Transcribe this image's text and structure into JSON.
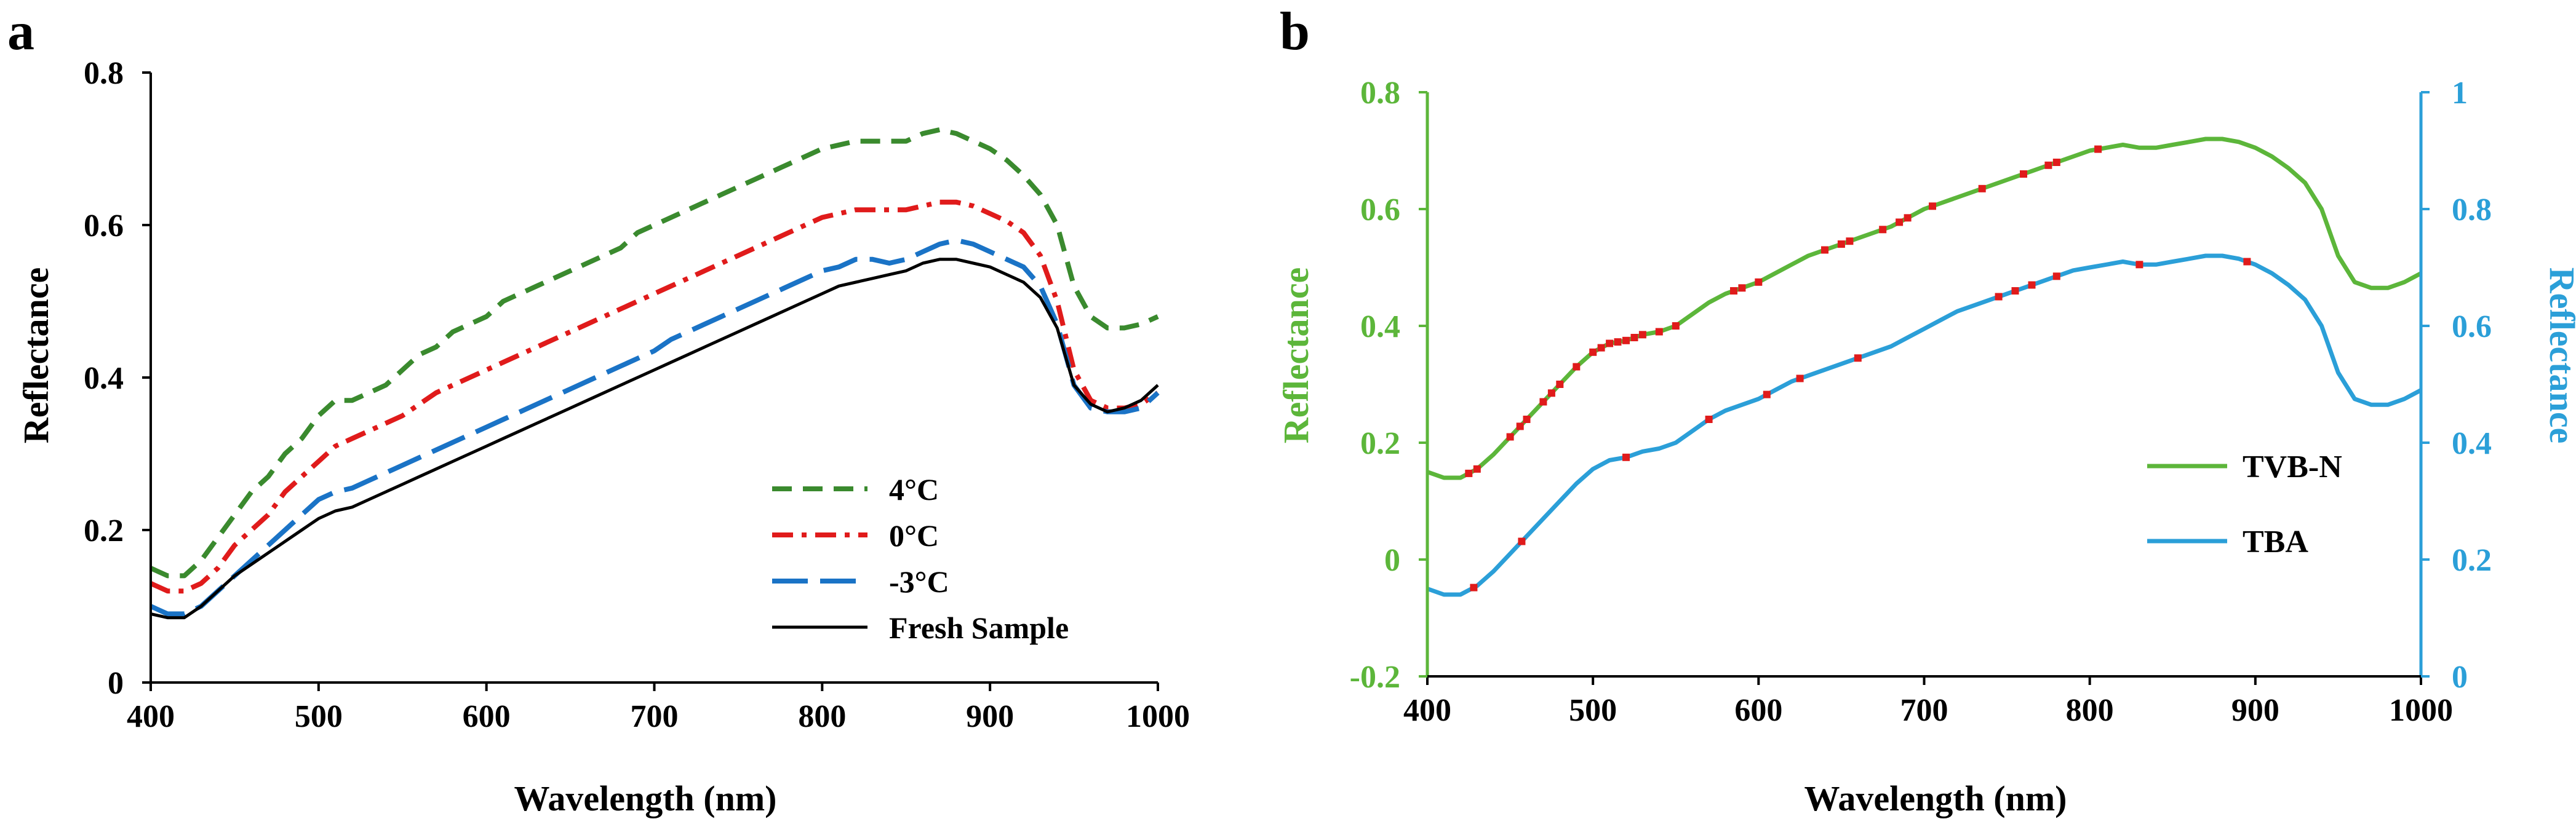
{
  "chart_data": [
    {
      "type": "line",
      "panel_label": "a",
      "xlabel": "Wavelength (nm)",
      "ylabel": "Reflectance",
      "xlim": [
        400,
        1000
      ],
      "ylim": [
        0,
        0.8
      ],
      "xticks": [
        400,
        500,
        600,
        700,
        800,
        900,
        1000
      ],
      "yticks": [
        0,
        0.2,
        0.4,
        0.6,
        0.8
      ],
      "ytick_labels": [
        "0",
        "0.2",
        "0.4",
        "0.6",
        "0.8"
      ],
      "legend_position": "bottom-right",
      "series": [
        {
          "name": "4°C",
          "color": "#3a8a2e",
          "style": "short-dash",
          "x": [
            400,
            410,
            420,
            430,
            440,
            450,
            460,
            470,
            480,
            490,
            500,
            510,
            520,
            530,
            540,
            550,
            560,
            570,
            580,
            590,
            600,
            610,
            620,
            630,
            640,
            650,
            660,
            670,
            680,
            690,
            700,
            710,
            720,
            730,
            740,
            750,
            760,
            770,
            780,
            790,
            800,
            810,
            820,
            830,
            840,
            850,
            860,
            870,
            880,
            890,
            900,
            910,
            920,
            930,
            940,
            950,
            960,
            970,
            980,
            990,
            1000
          ],
          "values": [
            0.15,
            0.14,
            0.14,
            0.16,
            0.19,
            0.22,
            0.25,
            0.27,
            0.3,
            0.32,
            0.35,
            0.37,
            0.37,
            0.38,
            0.39,
            0.41,
            0.43,
            0.44,
            0.46,
            0.47,
            0.48,
            0.5,
            0.51,
            0.52,
            0.53,
            0.54,
            0.55,
            0.56,
            0.57,
            0.59,
            0.6,
            0.61,
            0.62,
            0.63,
            0.64,
            0.65,
            0.66,
            0.67,
            0.68,
            0.69,
            0.7,
            0.705,
            0.71,
            0.71,
            0.71,
            0.71,
            0.72,
            0.725,
            0.72,
            0.71,
            0.7,
            0.685,
            0.665,
            0.64,
            0.6,
            0.52,
            0.48,
            0.465,
            0.465,
            0.47,
            0.48
          ]
        },
        {
          "name": "0°C",
          "color": "#e01b1b",
          "style": "dash-dot",
          "x": [
            400,
            410,
            420,
            430,
            440,
            450,
            460,
            470,
            480,
            490,
            500,
            510,
            520,
            530,
            540,
            550,
            560,
            570,
            580,
            590,
            600,
            610,
            620,
            630,
            640,
            650,
            660,
            670,
            680,
            690,
            700,
            710,
            720,
            730,
            740,
            750,
            760,
            770,
            780,
            790,
            800,
            810,
            820,
            830,
            840,
            850,
            860,
            870,
            880,
            890,
            900,
            910,
            920,
            930,
            940,
            950,
            960,
            970,
            980,
            990,
            1000
          ],
          "values": [
            0.13,
            0.12,
            0.12,
            0.13,
            0.15,
            0.18,
            0.2,
            0.22,
            0.25,
            0.27,
            0.29,
            0.31,
            0.32,
            0.33,
            0.34,
            0.35,
            0.365,
            0.38,
            0.39,
            0.4,
            0.41,
            0.42,
            0.43,
            0.44,
            0.45,
            0.46,
            0.47,
            0.48,
            0.49,
            0.5,
            0.51,
            0.52,
            0.53,
            0.54,
            0.55,
            0.56,
            0.57,
            0.58,
            0.59,
            0.6,
            0.61,
            0.615,
            0.62,
            0.62,
            0.62,
            0.62,
            0.625,
            0.63,
            0.63,
            0.625,
            0.615,
            0.605,
            0.59,
            0.56,
            0.5,
            0.41,
            0.37,
            0.36,
            0.36,
            0.365,
            0.38
          ]
        },
        {
          "name": "-3°C",
          "color": "#1a73c6",
          "style": "long-dash",
          "x": [
            400,
            410,
            420,
            430,
            440,
            450,
            460,
            470,
            480,
            490,
            500,
            510,
            520,
            530,
            540,
            550,
            560,
            570,
            580,
            590,
            600,
            610,
            620,
            630,
            640,
            650,
            660,
            670,
            680,
            690,
            700,
            710,
            720,
            730,
            740,
            750,
            760,
            770,
            780,
            790,
            800,
            810,
            820,
            830,
            840,
            850,
            860,
            870,
            880,
            890,
            900,
            910,
            920,
            930,
            940,
            950,
            960,
            970,
            980,
            990,
            1000
          ],
          "values": [
            0.1,
            0.09,
            0.09,
            0.1,
            0.12,
            0.14,
            0.16,
            0.18,
            0.2,
            0.22,
            0.24,
            0.25,
            0.255,
            0.265,
            0.275,
            0.285,
            0.295,
            0.305,
            0.315,
            0.325,
            0.335,
            0.345,
            0.355,
            0.365,
            0.375,
            0.385,
            0.395,
            0.405,
            0.415,
            0.425,
            0.435,
            0.45,
            0.46,
            0.47,
            0.48,
            0.49,
            0.5,
            0.51,
            0.52,
            0.53,
            0.54,
            0.545,
            0.555,
            0.555,
            0.55,
            0.555,
            0.565,
            0.575,
            0.58,
            0.575,
            0.565,
            0.555,
            0.545,
            0.52,
            0.47,
            0.39,
            0.36,
            0.355,
            0.355,
            0.36,
            0.38
          ]
        },
        {
          "name": "Fresh Sample",
          "color": "#000000",
          "style": "solid",
          "x": [
            400,
            410,
            420,
            430,
            440,
            450,
            460,
            470,
            480,
            490,
            500,
            510,
            520,
            530,
            540,
            550,
            560,
            570,
            580,
            590,
            600,
            610,
            620,
            630,
            640,
            650,
            660,
            670,
            680,
            690,
            700,
            710,
            720,
            730,
            740,
            750,
            760,
            770,
            780,
            790,
            800,
            810,
            820,
            830,
            840,
            850,
            860,
            870,
            880,
            890,
            900,
            910,
            920,
            930,
            940,
            950,
            960,
            970,
            980,
            990,
            1000
          ],
          "values": [
            0.09,
            0.085,
            0.085,
            0.1,
            0.12,
            0.14,
            0.155,
            0.17,
            0.185,
            0.2,
            0.215,
            0.225,
            0.23,
            0.24,
            0.25,
            0.26,
            0.27,
            0.28,
            0.29,
            0.3,
            0.31,
            0.32,
            0.33,
            0.34,
            0.35,
            0.36,
            0.37,
            0.38,
            0.39,
            0.4,
            0.41,
            0.42,
            0.43,
            0.44,
            0.45,
            0.46,
            0.47,
            0.48,
            0.49,
            0.5,
            0.51,
            0.52,
            0.525,
            0.53,
            0.535,
            0.54,
            0.55,
            0.555,
            0.555,
            0.55,
            0.545,
            0.535,
            0.525,
            0.505,
            0.465,
            0.39,
            0.365,
            0.355,
            0.36,
            0.37,
            0.39
          ]
        }
      ]
    },
    {
      "type": "line",
      "panel_label": "b",
      "xlabel": "Wavelength (nm)",
      "ylabel_left": "Reflectance",
      "ylabel_right": "Reflectance",
      "xlim": [
        400,
        1000
      ],
      "ylim_left": [
        -0.2,
        0.8
      ],
      "ylim_right": [
        0,
        1
      ],
      "xticks": [
        400,
        500,
        600,
        700,
        800,
        900,
        1000
      ],
      "yticks_left": [
        -0.2,
        0,
        0.2,
        0.4,
        0.6,
        0.8
      ],
      "ytick_labels_left": [
        "-0.2",
        "0",
        "0.2",
        "0.4",
        "0.6",
        "0.8"
      ],
      "yticks_right": [
        0,
        0.2,
        0.4,
        0.6,
        0.8,
        1
      ],
      "ytick_labels_right": [
        "0",
        "0.2",
        "0.4",
        "0.6",
        "0.8",
        "1"
      ],
      "left_axis_color": "#5cb63a",
      "right_axis_color": "#2b9fd8",
      "legend_position": "bottom-right",
      "series": [
        {
          "name": "TVB-N",
          "axis": "left",
          "color": "#5cb63a",
          "x": [
            400,
            410,
            420,
            430,
            440,
            450,
            460,
            470,
            480,
            490,
            500,
            510,
            520,
            530,
            540,
            550,
            560,
            570,
            580,
            590,
            600,
            610,
            620,
            630,
            640,
            650,
            660,
            670,
            680,
            690,
            700,
            710,
            720,
            730,
            740,
            750,
            760,
            770,
            780,
            790,
            800,
            810,
            820,
            830,
            840,
            850,
            860,
            870,
            880,
            890,
            900,
            910,
            920,
            930,
            940,
            950,
            960,
            970,
            980,
            990,
            1000
          ],
          "values": [
            0.15,
            0.14,
            0.14,
            0.155,
            0.18,
            0.21,
            0.24,
            0.27,
            0.3,
            0.33,
            0.355,
            0.37,
            0.375,
            0.385,
            0.39,
            0.4,
            0.42,
            0.44,
            0.455,
            0.465,
            0.475,
            0.49,
            0.505,
            0.52,
            0.53,
            0.54,
            0.55,
            0.56,
            0.57,
            0.585,
            0.6,
            0.61,
            0.62,
            0.63,
            0.64,
            0.65,
            0.66,
            0.67,
            0.68,
            0.69,
            0.7,
            0.705,
            0.71,
            0.705,
            0.705,
            0.71,
            0.715,
            0.72,
            0.72,
            0.715,
            0.705,
            0.69,
            0.67,
            0.645,
            0.6,
            0.52,
            0.475,
            0.465,
            0.465,
            0.475,
            0.49
          ],
          "marked_x": [
            425,
            430,
            450,
            456,
            460,
            470,
            475,
            480,
            490,
            500,
            505,
            510,
            515,
            520,
            525,
            530,
            540,
            550,
            585,
            590,
            600,
            640,
            650,
            655,
            675,
            685,
            690,
            705,
            735,
            760,
            775,
            780,
            805
          ]
        },
        {
          "name": "TBA",
          "axis": "right",
          "color": "#2b9fd8",
          "x": [
            400,
            410,
            420,
            430,
            440,
            450,
            460,
            470,
            480,
            490,
            500,
            510,
            520,
            530,
            540,
            550,
            560,
            570,
            580,
            590,
            600,
            610,
            620,
            630,
            640,
            650,
            660,
            670,
            680,
            690,
            700,
            710,
            720,
            730,
            740,
            750,
            760,
            770,
            780,
            790,
            800,
            810,
            820,
            830,
            840,
            850,
            860,
            870,
            880,
            890,
            900,
            910,
            920,
            930,
            940,
            950,
            960,
            970,
            980,
            990,
            1000
          ],
          "values": [
            0.15,
            0.14,
            0.14,
            0.155,
            0.18,
            0.21,
            0.24,
            0.27,
            0.3,
            0.33,
            0.355,
            0.37,
            0.375,
            0.385,
            0.39,
            0.4,
            0.42,
            0.44,
            0.455,
            0.465,
            0.475,
            0.49,
            0.505,
            0.515,
            0.525,
            0.535,
            0.545,
            0.555,
            0.565,
            0.58,
            0.595,
            0.61,
            0.625,
            0.635,
            0.645,
            0.655,
            0.665,
            0.675,
            0.685,
            0.695,
            0.7,
            0.705,
            0.71,
            0.705,
            0.705,
            0.71,
            0.715,
            0.72,
            0.72,
            0.715,
            0.705,
            0.69,
            0.67,
            0.645,
            0.6,
            0.52,
            0.475,
            0.465,
            0.465,
            0.475,
            0.49
          ],
          "marked_x": [
            428,
            457,
            520,
            570,
            605,
            625,
            660,
            745,
            755,
            765,
            780,
            830,
            895
          ]
        }
      ]
    }
  ]
}
